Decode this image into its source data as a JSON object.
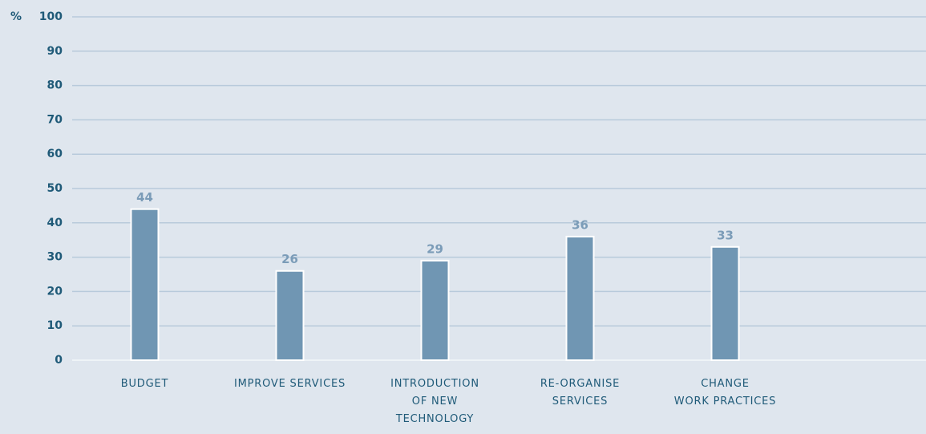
{
  "chart_data": {
    "type": "bar",
    "y_label": "%",
    "categories": [
      [
        "BUDGET"
      ],
      [
        "IMPROVE SERVICES"
      ],
      [
        "INTRODUCTION",
        "OF NEW",
        "TECHNOLOGY"
      ],
      [
        "RE-ORGANISE",
        "SERVICES"
      ],
      [
        "CHANGE",
        "WORK PRACTICES"
      ]
    ],
    "values": [
      44,
      26,
      29,
      36,
      33
    ],
    "color": "#7096b3",
    "ylim": [
      0,
      100
    ],
    "yticks": [
      0,
      10,
      20,
      30,
      40,
      50,
      60,
      70,
      80,
      90,
      100
    ],
    "grid": true
  }
}
